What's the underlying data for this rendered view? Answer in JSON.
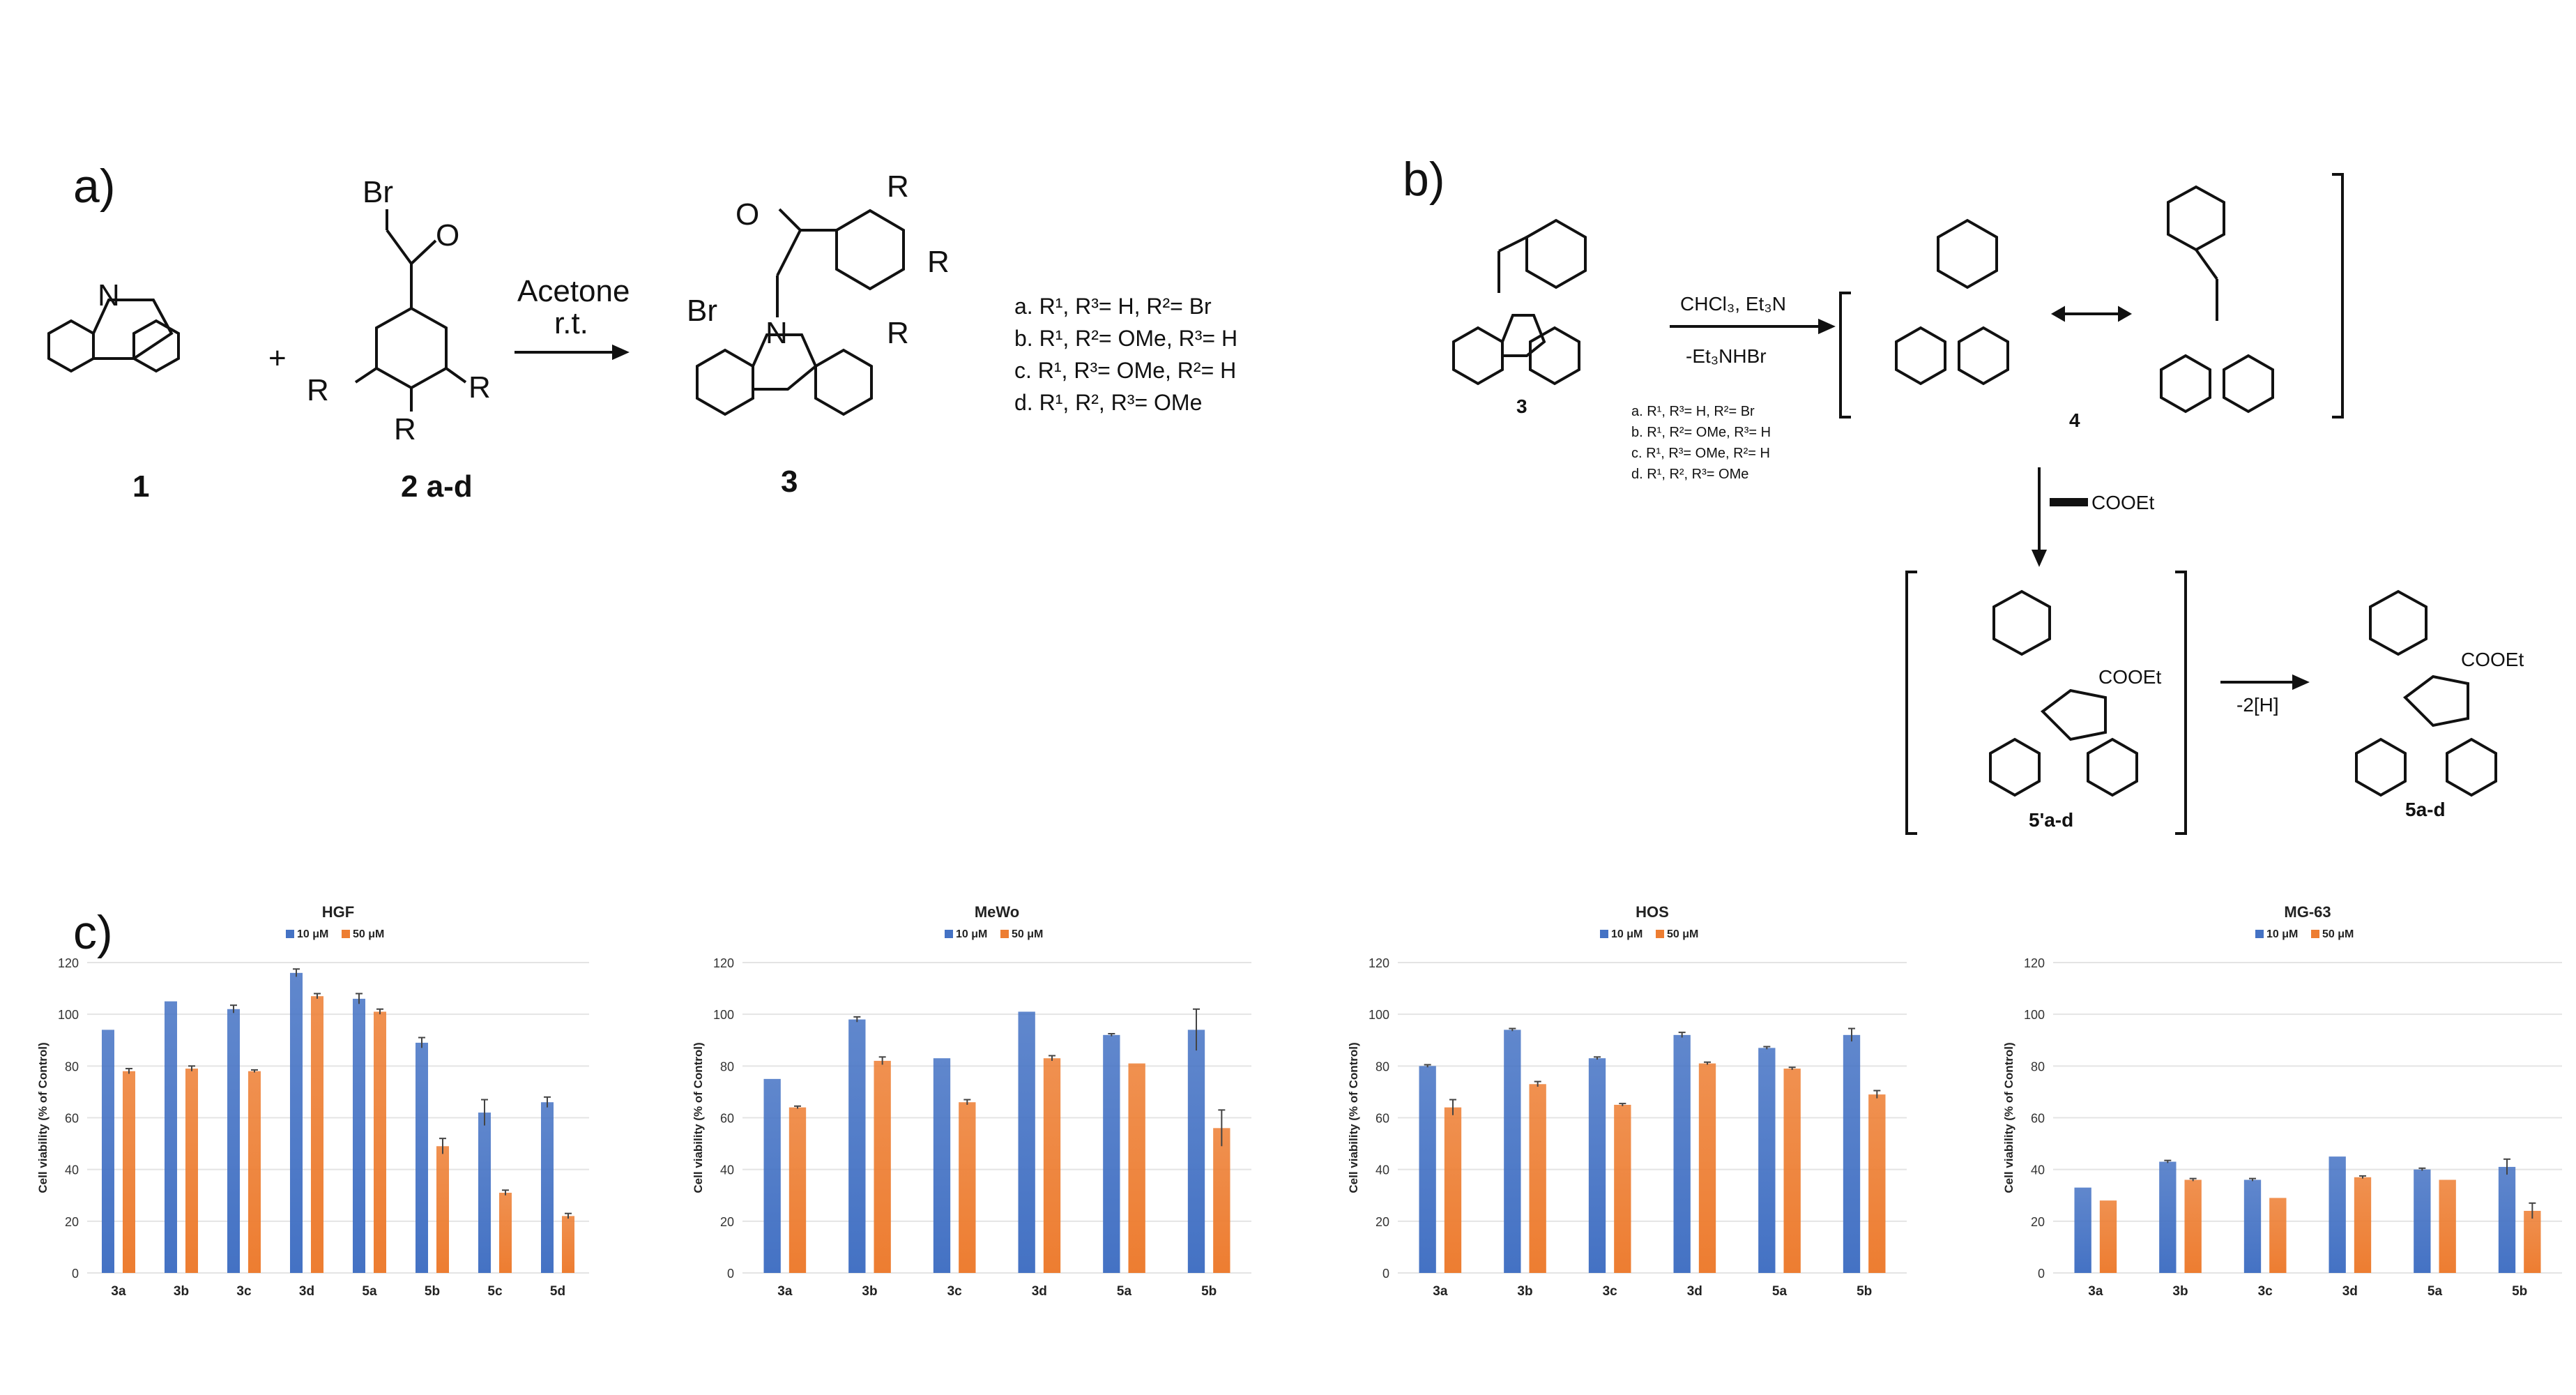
{
  "panel_a": {
    "label": "a)",
    "compound1": "1",
    "compound2": "2 a-d",
    "compound3": "3",
    "plus": "+",
    "reagent": "Acetone",
    "condition": "r.t.",
    "Br": "Br",
    "O": "O",
    "N": "N",
    "R1": "R",
    "R2": "R",
    "R3": "R",
    "legend": [
      "a. R¹, R³= H, R²= Br",
      "b. R¹, R²= OMe, R³= H",
      "c. R¹, R³= OMe, R²= H",
      "d. R¹, R², R³= OMe"
    ]
  },
  "panel_b": {
    "label": "b)",
    "compound3": "3",
    "compound4": "4",
    "compound5p": "5'a-d",
    "compound5": "5a-d",
    "reagent_top": "CHCl₃, Et₃N",
    "reagent_bottom": "-Et₃NHBr",
    "alkyne": "COOEt",
    "ester": "COOEt",
    "oxidation": "-2[H]",
    "legend": [
      "a. R¹, R³= H, R²= Br",
      "b. R¹, R²= OMe, R³= H",
      "c. R¹, R³= OMe, R²= H",
      "d. R¹, R², R³= OMe"
    ]
  },
  "panel_c": {
    "label": "c)"
  },
  "colors": {
    "s10": "#4472C4",
    "s50": "#ED7D31",
    "grid": "#e4e4e4"
  },
  "chart_data": [
    {
      "type": "bar",
      "title": "HGF",
      "categories": [
        "3a",
        "3b",
        "3c",
        "3d",
        "5a",
        "5b",
        "5c",
        "5d"
      ],
      "ylabel": "Cell viability (% of Control)",
      "ylim": [
        0,
        120
      ],
      "yticks": [
        "0",
        "20",
        "40",
        "60",
        "80",
        "100",
        "120"
      ],
      "legend_position": "top",
      "series": [
        {
          "name": "10 μM",
          "values": [
            94,
            105,
            102,
            116,
            106,
            89,
            62,
            66
          ],
          "errors": [
            0,
            0,
            1.5,
            1.5,
            2,
            2,
            5,
            2
          ]
        },
        {
          "name": "50 μM",
          "values": [
            78,
            79,
            78,
            107,
            101,
            49,
            31,
            22
          ],
          "errors": [
            1,
            1,
            0.5,
            1,
            1,
            3,
            1,
            1
          ]
        }
      ]
    },
    {
      "type": "bar",
      "title": "MeWo",
      "categories": [
        "3a",
        "3b",
        "3c",
        "3d",
        "5a",
        "5b"
      ],
      "ylabel": "Cell viability (% of Control)",
      "ylim": [
        0,
        120
      ],
      "yticks": [
        "0",
        "20",
        "40",
        "60",
        "80",
        "100",
        "120"
      ],
      "legend_position": "top",
      "series": [
        {
          "name": "10 μM",
          "values": [
            75,
            98,
            83,
            101,
            92,
            94
          ],
          "errors": [
            0,
            1,
            0,
            0,
            0.5,
            8
          ]
        },
        {
          "name": "50 μM",
          "values": [
            64,
            82,
            66,
            83,
            81,
            56
          ],
          "errors": [
            0.5,
            1.5,
            1,
            1,
            0,
            7
          ]
        }
      ]
    },
    {
      "type": "bar",
      "title": "HOS",
      "categories": [
        "3a",
        "3b",
        "3c",
        "3d",
        "5a",
        "5b"
      ],
      "ylabel": "Cell viability (% of Control)",
      "ylim": [
        0,
        120
      ],
      "yticks": [
        "0",
        "20",
        "40",
        "60",
        "80",
        "100",
        "120"
      ],
      "legend_position": "top",
      "series": [
        {
          "name": "10 μM",
          "values": [
            80,
            94,
            83,
            92,
            87,
            92
          ],
          "errors": [
            0.5,
            0.5,
            0.5,
            1,
            0.5,
            2.5
          ]
        },
        {
          "name": "50 μM",
          "values": [
            64,
            73,
            65,
            81,
            79,
            69
          ],
          "errors": [
            3,
            1,
            0.5,
            0.5,
            0.5,
            1.5
          ]
        }
      ]
    },
    {
      "type": "bar",
      "title": "MG-63",
      "categories": [
        "3a",
        "3b",
        "3c",
        "3d",
        "5a",
        "5b"
      ],
      "ylabel": "Cell viability (% of Control)",
      "ylim": [
        0,
        120
      ],
      "yticks": [
        "0",
        "20",
        "40",
        "60",
        "80",
        "100",
        "120"
      ],
      "legend_position": "top",
      "series": [
        {
          "name": "10 μM",
          "values": [
            33,
            43,
            36,
            45,
            40,
            41
          ],
          "errors": [
            0,
            0.5,
            0.5,
            0,
            0.5,
            3
          ]
        },
        {
          "name": "50 μM",
          "values": [
            28,
            36,
            29,
            37,
            36,
            24
          ],
          "errors": [
            0,
            0.5,
            0,
            0.5,
            0,
            3
          ]
        }
      ]
    }
  ]
}
